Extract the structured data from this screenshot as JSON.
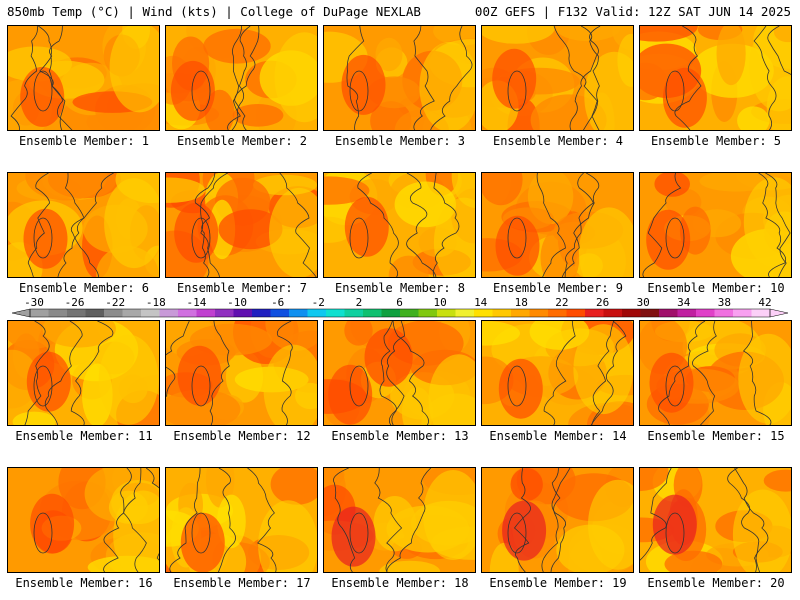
{
  "header": {
    "left": "850mb Temp (°C) | Wind (kts) | College of DuPage NEXLAB",
    "right": "00Z GEFS | F132 Valid: 12Z SAT JUN 14 2025"
  },
  "member_label_prefix": "Ensemble Member:",
  "members": [
    {
      "id": "1",
      "label": "Ensemble Member: 1"
    },
    {
      "id": "2",
      "label": "Ensemble Member: 2"
    },
    {
      "id": "3",
      "label": "Ensemble Member: 3"
    },
    {
      "id": "4",
      "label": "Ensemble Member: 4"
    },
    {
      "id": "5",
      "label": "Ensemble Member: 5"
    },
    {
      "id": "6",
      "label": "Ensemble Member: 6"
    },
    {
      "id": "7",
      "label": "Ensemble Member: 7"
    },
    {
      "id": "8",
      "label": "Ensemble Member: 8"
    },
    {
      "id": "9",
      "label": "Ensemble Member: 9"
    },
    {
      "id": "10",
      "label": "Ensemble Member: 10"
    },
    {
      "id": "11",
      "label": "Ensemble Member: 11"
    },
    {
      "id": "12",
      "label": "Ensemble Member: 12"
    },
    {
      "id": "13",
      "label": "Ensemble Member: 13"
    },
    {
      "id": "14",
      "label": "Ensemble Member: 14"
    },
    {
      "id": "15",
      "label": "Ensemble Member: 15"
    },
    {
      "id": "16",
      "label": "Ensemble Member: 16"
    },
    {
      "id": "17",
      "label": "Ensemble Member: 17"
    },
    {
      "id": "18",
      "label": "Ensemble Member: 18"
    },
    {
      "id": "19",
      "label": "Ensemble Member: 19"
    },
    {
      "id": "20",
      "label": "Ensemble Member: 20"
    }
  ],
  "colorbar": {
    "tick_labels": [
      "-30",
      "-26",
      "-22",
      "-18",
      "-14",
      "-10",
      "-6",
      "-2",
      "2",
      "6",
      "10",
      "14",
      "18",
      "22",
      "26",
      "30",
      "34",
      "38",
      "42"
    ],
    "colors": [
      "#a0a0a0",
      "#8a8a8a",
      "#747474",
      "#5f5f5f",
      "#8c8c8c",
      "#a8a8a8",
      "#c4c4c4",
      "#c89ad8",
      "#d070e0",
      "#c040d0",
      "#9030c0",
      "#6010b0",
      "#2020c0",
      "#1050e0",
      "#1090f0",
      "#10c8f0",
      "#10e0d0",
      "#10d0a0",
      "#10c070",
      "#10a040",
      "#40b020",
      "#80c810",
      "#c8e010",
      "#f0f030",
      "#ffe000",
      "#ffc800",
      "#ffa800",
      "#ff8a00",
      "#ff6c00",
      "#ff4c00",
      "#e82020",
      "#c81010",
      "#a00808",
      "#801010",
      "#a0106a",
      "#c020a0",
      "#e040c8",
      "#f070e0",
      "#f8a0f0",
      "#fcd0f8"
    ]
  }
}
